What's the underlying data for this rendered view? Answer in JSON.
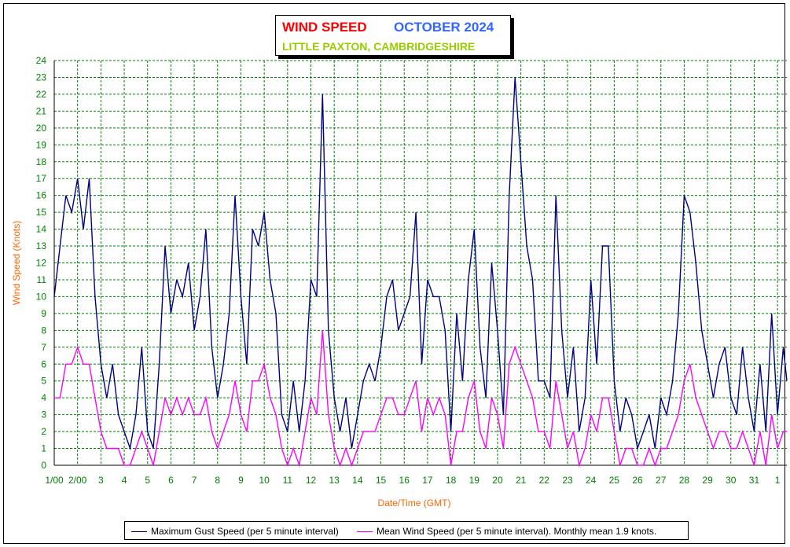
{
  "title": {
    "left": "WIND SPEED",
    "right": "OCTOBER 2024",
    "subtitle": "LITTLE PAXTON, CAMBRIDGESHIRE"
  },
  "colors": {
    "title_red": "#ff0000",
    "title_blue": "#3366ff",
    "subtitle_green": "#99cc00",
    "axis_text": "#008000",
    "axis_title": "#ff6600",
    "gust": "#000080",
    "mean": "#ff00ff",
    "grid": "#008000"
  },
  "legend": [
    "Maximum Gust Speed (per 5 minute interval)",
    "Mean Wind Speed (per 5 minute interval). Monthly mean 1.9 knots."
  ],
  "chart_data": {
    "type": "line",
    "xlabel": "Date/Time (GMT)",
    "ylabel": "Wind Speed (Knots)",
    "ylim": [
      0,
      24
    ],
    "xlim": [
      1,
      32.4
    ],
    "yticks": [
      0,
      1,
      2,
      3,
      4,
      5,
      6,
      7,
      8,
      9,
      10,
      11,
      12,
      13,
      14,
      15,
      16,
      17,
      18,
      19,
      20,
      21,
      22,
      23,
      24
    ],
    "xtick_labels": [
      "1/00",
      "2/00",
      "3",
      "4",
      "5",
      "6",
      "7",
      "8",
      "9",
      "10",
      "11",
      "12",
      "13",
      "14",
      "15",
      "16",
      "17",
      "18",
      "19",
      "20",
      "21",
      "22",
      "23",
      "24",
      "25",
      "26",
      "27",
      "28",
      "29",
      "30",
      "31",
      "1"
    ],
    "xtick_days": [
      1,
      2,
      3,
      4,
      5,
      6,
      7,
      8,
      9,
      10,
      11,
      12,
      13,
      14,
      15,
      16,
      17,
      18,
      19,
      20,
      21,
      22,
      23,
      24,
      25,
      26,
      27,
      28,
      29,
      30,
      31,
      32
    ],
    "grid": true,
    "legend_position": "bottom",
    "series": [
      {
        "name": "Maximum Gust Speed (per 5 minute interval)",
        "x": [
          1.0,
          1.25,
          1.5,
          1.75,
          2.0,
          2.25,
          2.5,
          2.75,
          3.0,
          3.25,
          3.5,
          3.75,
          4.0,
          4.25,
          4.5,
          4.75,
          5.0,
          5.25,
          5.5,
          5.75,
          6.0,
          6.25,
          6.5,
          6.75,
          7.0,
          7.25,
          7.5,
          7.75,
          8.0,
          8.25,
          8.5,
          8.75,
          9.0,
          9.25,
          9.5,
          9.75,
          10.0,
          10.25,
          10.5,
          10.75,
          11.0,
          11.25,
          11.5,
          11.75,
          12.0,
          12.25,
          12.5,
          12.75,
          13.0,
          13.25,
          13.5,
          13.75,
          14.0,
          14.25,
          14.5,
          14.75,
          15.0,
          15.25,
          15.5,
          15.75,
          16.0,
          16.25,
          16.5,
          16.75,
          17.0,
          17.25,
          17.5,
          17.75,
          18.0,
          18.25,
          18.5,
          18.75,
          19.0,
          19.25,
          19.5,
          19.75,
          20.0,
          20.25,
          20.5,
          20.75,
          21.0,
          21.25,
          21.5,
          21.75,
          22.0,
          22.25,
          22.5,
          22.75,
          23.0,
          23.25,
          23.5,
          23.75,
          24.0,
          24.25,
          24.5,
          24.75,
          25.0,
          25.25,
          25.5,
          25.75,
          26.0,
          26.25,
          26.5,
          26.75,
          27.0,
          27.25,
          27.5,
          27.75,
          28.0,
          28.25,
          28.5,
          28.75,
          29.0,
          29.25,
          29.5,
          29.75,
          30.0,
          30.25,
          30.5,
          30.75,
          31.0,
          31.25,
          31.5,
          31.75,
          32.0,
          32.25,
          32.4
        ],
        "values": [
          10,
          13,
          16,
          15,
          17,
          14,
          17,
          10,
          6,
          4,
          6,
          3,
          2,
          1,
          3,
          7,
          2,
          1,
          6,
          13,
          9,
          11,
          10,
          12,
          8,
          10,
          14,
          7,
          4,
          6,
          9,
          16,
          10,
          6,
          14,
          13,
          15,
          11,
          9,
          3,
          2,
          5,
          2,
          5,
          11,
          10,
          22,
          8,
          4,
          2,
          4,
          1,
          3,
          5,
          6,
          5,
          7,
          10,
          11,
          8,
          9,
          10,
          15,
          6,
          11,
          10,
          10,
          8,
          2,
          9,
          5,
          11,
          14,
          7,
          4,
          12,
          8,
          3,
          16,
          23,
          18,
          13,
          11,
          5,
          5,
          4,
          16,
          8,
          4,
          7,
          2,
          4,
          11,
          6,
          13,
          13,
          5,
          2,
          4,
          3,
          1,
          2,
          3,
          1,
          4,
          3,
          5,
          9,
          16,
          15,
          12,
          8,
          6,
          4,
          6,
          7,
          4,
          3,
          7,
          4,
          2,
          6,
          2,
          9,
          3,
          7,
          5
        ]
      },
      {
        "name": "Mean Wind Speed (per 5 minute interval). Monthly mean 1.9 knots.",
        "x": [
          1.0,
          1.25,
          1.5,
          1.75,
          2.0,
          2.25,
          2.5,
          2.75,
          3.0,
          3.25,
          3.5,
          3.75,
          4.0,
          4.25,
          4.5,
          4.75,
          5.0,
          5.25,
          5.5,
          5.75,
          6.0,
          6.25,
          6.5,
          6.75,
          7.0,
          7.25,
          7.5,
          7.75,
          8.0,
          8.25,
          8.5,
          8.75,
          9.0,
          9.25,
          9.5,
          9.75,
          10.0,
          10.25,
          10.5,
          10.75,
          11.0,
          11.25,
          11.5,
          11.75,
          12.0,
          12.25,
          12.5,
          12.75,
          13.0,
          13.25,
          13.5,
          13.75,
          14.0,
          14.25,
          14.5,
          14.75,
          15.0,
          15.25,
          15.5,
          15.75,
          16.0,
          16.25,
          16.5,
          16.75,
          17.0,
          17.25,
          17.5,
          17.75,
          18.0,
          18.25,
          18.5,
          18.75,
          19.0,
          19.25,
          19.5,
          19.75,
          20.0,
          20.25,
          20.5,
          20.75,
          21.0,
          21.25,
          21.5,
          21.75,
          22.0,
          22.25,
          22.5,
          22.75,
          23.0,
          23.25,
          23.5,
          23.75,
          24.0,
          24.25,
          24.5,
          24.75,
          25.0,
          25.25,
          25.5,
          25.75,
          26.0,
          26.25,
          26.5,
          26.75,
          27.0,
          27.25,
          27.5,
          27.75,
          28.0,
          28.25,
          28.5,
          28.75,
          29.0,
          29.25,
          29.5,
          29.75,
          30.0,
          30.25,
          30.5,
          30.75,
          31.0,
          31.25,
          31.5,
          31.75,
          32.0,
          32.25,
          32.4
        ],
        "values": [
          4,
          4,
          6,
          6,
          7,
          6,
          6,
          4,
          2,
          1,
          1,
          1,
          0,
          0,
          1,
          2,
          1,
          0,
          2,
          4,
          3,
          4,
          3,
          4,
          3,
          3,
          4,
          2,
          1,
          2,
          3,
          5,
          3,
          2,
          5,
          5,
          6,
          4,
          3,
          1,
          0,
          1,
          0,
          2,
          4,
          3,
          8,
          3,
          1,
          0,
          1,
          0,
          1,
          2,
          2,
          2,
          3,
          4,
          4,
          3,
          3,
          4,
          5,
          2,
          4,
          3,
          4,
          3,
          0,
          2,
          2,
          4,
          5,
          2,
          1,
          4,
          3,
          1,
          6,
          7,
          6,
          5,
          4,
          2,
          2,
          1,
          5,
          3,
          1,
          2,
          0,
          1,
          3,
          2,
          4,
          4,
          2,
          0,
          1,
          1,
          0,
          0,
          1,
          0,
          1,
          1,
          2,
          3,
          5,
          6,
          4,
          3,
          2,
          1,
          2,
          2,
          1,
          1,
          2,
          1,
          0,
          2,
          0,
          3,
          1,
          2,
          2
        ]
      }
    ]
  }
}
